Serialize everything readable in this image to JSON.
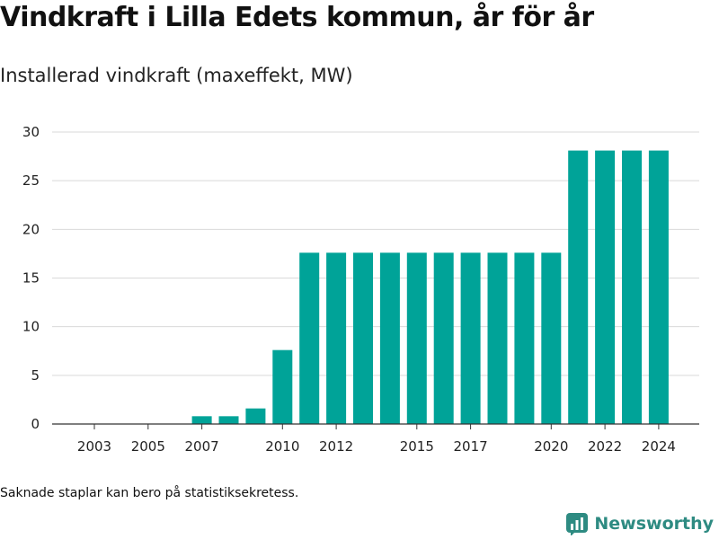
{
  "title": "Vindkraft i Lilla Edets kommun, år för år",
  "subtitle": "Installerad vindkraft (maxeffekt, MW)",
  "footnote": "Saknade staplar kan bero på statistiksekretess.",
  "brand": {
    "name": "Newsworthy",
    "logo_icon": "bar-chart-logo-icon",
    "color": "#2e8b82"
  },
  "chart_data": {
    "type": "bar",
    "categories": [
      "2003",
      "2004",
      "2005",
      "2006",
      "2007",
      "2008",
      "2009",
      "2010",
      "2011",
      "2012",
      "2013",
      "2014",
      "2015",
      "2016",
      "2017",
      "2018",
      "2019",
      "2020",
      "2021",
      "2022",
      "2023",
      "2024"
    ],
    "values": [
      0,
      0,
      0,
      0,
      0.8,
      0.8,
      1.6,
      7.6,
      17.6,
      17.6,
      17.6,
      17.6,
      17.6,
      17.6,
      17.6,
      17.6,
      17.6,
      17.6,
      28.1,
      28.1,
      28.1,
      28.1
    ],
    "x_tick_labels": [
      "2003",
      "2005",
      "2007",
      "2010",
      "2012",
      "2015",
      "2017",
      "2020",
      "2022",
      "2024"
    ],
    "y_ticks": [
      0,
      5,
      10,
      15,
      20,
      25,
      30
    ],
    "ylim": [
      0,
      30
    ],
    "xlabel": "",
    "ylabel": "",
    "grid": true,
    "bar_color": "#00a398"
  }
}
